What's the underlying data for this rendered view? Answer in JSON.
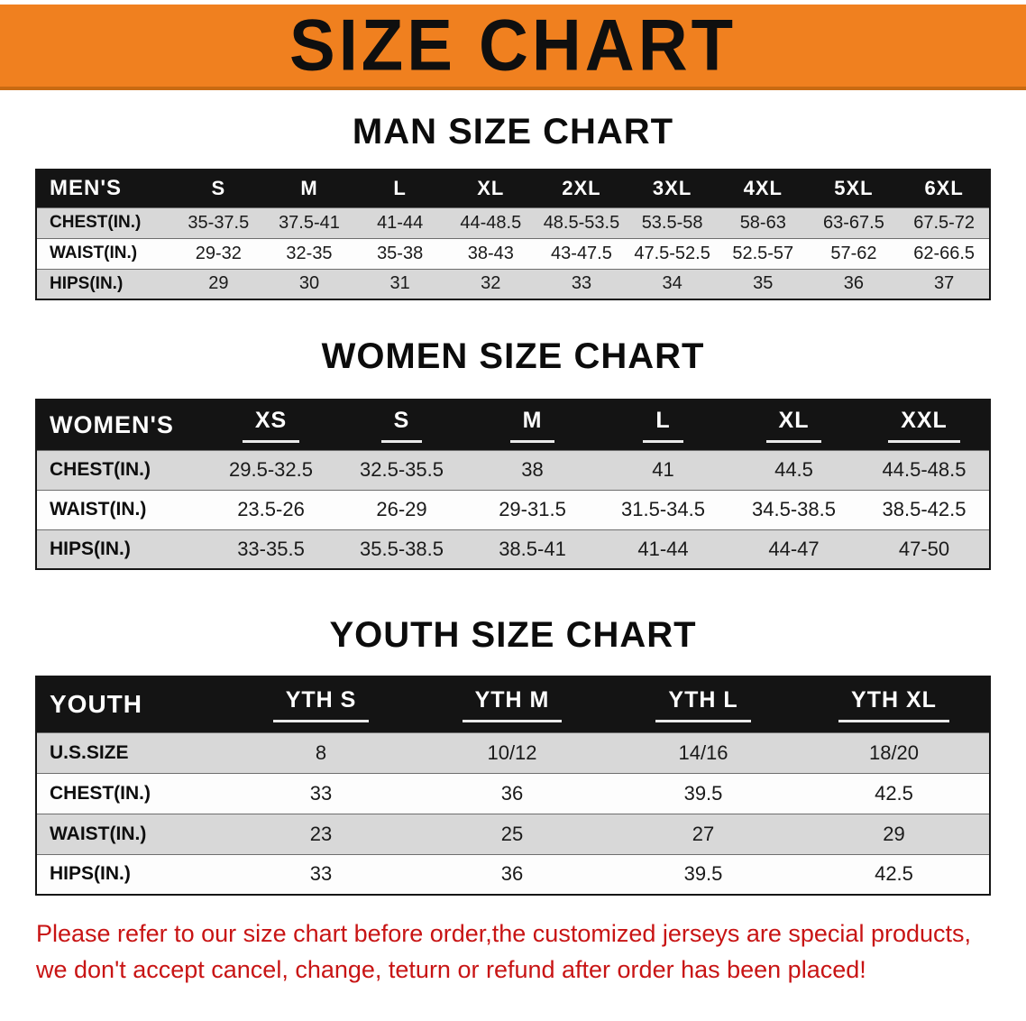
{
  "banner": {
    "title": "SIZE CHART",
    "bg_color": "#F0801F"
  },
  "sections": [
    {
      "heading": "MAN SIZE CHART",
      "table": {
        "header": [
          "MEN'S",
          "S",
          "M",
          "L",
          "XL",
          "2XL",
          "3XL",
          "4XL",
          "5XL",
          "6XL"
        ],
        "rows": [
          [
            "CHEST(IN.)",
            "35-37.5",
            "37.5-41",
            "41-44",
            "44-48.5",
            "48.5-53.5",
            "53.5-58",
            "58-63",
            "63-67.5",
            "67.5-72"
          ],
          [
            "WAIST(IN.)",
            "29-32",
            "32-35",
            "35-38",
            "38-43",
            "43-47.5",
            "47.5-52.5",
            "52.5-57",
            "57-62",
            "62-66.5"
          ],
          [
            "HIPS(IN.)",
            "29",
            "30",
            "31",
            "32",
            "33",
            "34",
            "35",
            "36",
            "37"
          ]
        ]
      }
    },
    {
      "heading": "WOMEN SIZE CHART",
      "table": {
        "header": [
          "WOMEN'S",
          "XS",
          "S",
          "M",
          "L",
          "XL",
          "XXL"
        ],
        "rows": [
          [
            "CHEST(IN.)",
            "29.5-32.5",
            "32.5-35.5",
            "38",
            "41",
            "44.5",
            "44.5-48.5"
          ],
          [
            "WAIST(IN.)",
            "23.5-26",
            "26-29",
            "29-31.5",
            "31.5-34.5",
            "34.5-38.5",
            "38.5-42.5"
          ],
          [
            "HIPS(IN.)",
            "33-35.5",
            "35.5-38.5",
            "38.5-41",
            "41-44",
            "44-47",
            "47-50"
          ]
        ]
      }
    },
    {
      "heading": "YOUTH SIZE CHART",
      "table": {
        "header": [
          "YOUTH",
          "YTH S",
          "YTH M",
          "YTH L",
          "YTH XL"
        ],
        "rows": [
          [
            "U.S.SIZE",
            "8",
            "10/12",
            "14/16",
            "18/20"
          ],
          [
            "CHEST(IN.)",
            "33",
            "36",
            "39.5",
            "42.5"
          ],
          [
            "WAIST(IN.)",
            "23",
            "25",
            "27",
            "29"
          ],
          [
            "HIPS(IN.)",
            "33",
            "36",
            "39.5",
            "42.5"
          ]
        ]
      }
    }
  ],
  "disclaimer": {
    "line1": "Please refer to our size chart before order,the customized jerseys are special products,",
    "line2": "we don't accept cancel, change, teturn or refund after order has been placed!",
    "color": "#C81414"
  }
}
